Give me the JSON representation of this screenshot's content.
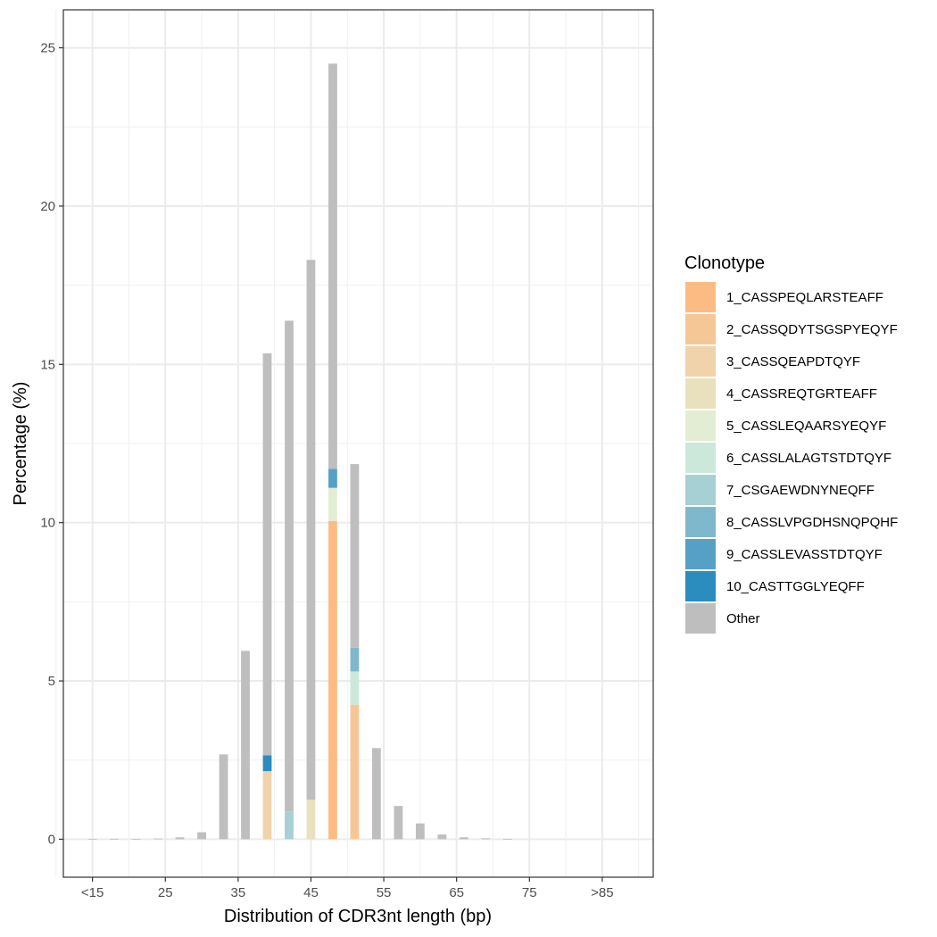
{
  "chart_data": {
    "type": "bar",
    "stacked": true,
    "xlabel": "Distribution of CDR3nt length (bp)",
    "ylabel": "Percentage (%)",
    "x_ticks": [
      {
        "label": "<15",
        "x": 15
      },
      {
        "label": "25",
        "x": 25
      },
      {
        "label": "35",
        "x": 35
      },
      {
        "label": "45",
        "x": 45
      },
      {
        "label": "55",
        "x": 55
      },
      {
        "label": "65",
        "x": 65
      },
      {
        "label": "75",
        "x": 75
      },
      {
        "label": ">85",
        "x": 85
      }
    ],
    "xlim": [
      11,
      92
    ],
    "ylim": [
      -1.2,
      26.2
    ],
    "y_ticks": [
      0,
      5,
      10,
      15,
      20,
      25
    ],
    "grid": true,
    "legend": {
      "title": "Clonotype",
      "placement": "right",
      "entries": [
        {
          "name": "1_CASSPEQLARSTEAFF",
          "color": "#FDBB84"
        },
        {
          "name": "2_CASSQDYTSGSPYEQYF",
          "color": "#F6C796"
        },
        {
          "name": "3_CASSQEAPDTQYF",
          "color": "#F0D3AA"
        },
        {
          "name": "4_CASSREQTGRTEAFF",
          "color": "#E9E1BE"
        },
        {
          "name": "5_CASSLEQAARSYEQYF",
          "color": "#E3EDD3"
        },
        {
          "name": "6_CASSLALAGTSTDTQYF",
          "color": "#CCE8DA"
        },
        {
          "name": "7_CSGAEWDNYNEQFF",
          "color": "#A6D0D3"
        },
        {
          "name": "8_CASSLVPGDHSNQPQHF",
          "color": "#7FB8CC"
        },
        {
          "name": "9_CASSLEVASSTDTQYF",
          "color": "#56A0C6"
        },
        {
          "name": "10_CASTTGGLYEQFF",
          "color": "#2B8CBE"
        },
        {
          "name": "Other",
          "color": "#BEBEBE"
        }
      ]
    },
    "bars": [
      {
        "x": 15,
        "segments": [
          {
            "name": "Other",
            "value": 0.01
          }
        ]
      },
      {
        "x": 18,
        "segments": [
          {
            "name": "Other",
            "value": 0.01
          }
        ]
      },
      {
        "x": 21,
        "segments": [
          {
            "name": "Other",
            "value": 0.01
          }
        ]
      },
      {
        "x": 24,
        "segments": [
          {
            "name": "Other",
            "value": 0.02
          }
        ]
      },
      {
        "x": 27,
        "segments": [
          {
            "name": "Other",
            "value": 0.06
          }
        ]
      },
      {
        "x": 30,
        "segments": [
          {
            "name": "Other",
            "value": 0.22
          }
        ]
      },
      {
        "x": 33,
        "segments": [
          {
            "name": "Other",
            "value": 2.68
          }
        ]
      },
      {
        "x": 36,
        "segments": [
          {
            "name": "Other",
            "value": 5.95
          }
        ]
      },
      {
        "x": 39,
        "segments": [
          {
            "name": "3_CASSQEAPDTQYF",
            "value": 2.15
          },
          {
            "name": "10_CASTTGGLYEQFF",
            "value": 0.5
          },
          {
            "name": "Other",
            "value": 12.7
          }
        ]
      },
      {
        "x": 42,
        "segments": [
          {
            "name": "7_CSGAEWDNYNEQFF",
            "value": 0.88
          },
          {
            "name": "Other",
            "value": 15.5
          }
        ]
      },
      {
        "x": 45,
        "segments": [
          {
            "name": "4_CASSREQTGRTEAFF",
            "value": 1.25
          },
          {
            "name": "Other",
            "value": 17.05
          }
        ]
      },
      {
        "x": 48,
        "segments": [
          {
            "name": "1_CASSPEQLARSTEAFF",
            "value": 10.05
          },
          {
            "name": "5_CASSLEQAARSYEQYF",
            "value": 1.05
          },
          {
            "name": "9_CASSLEVASSTDTQYF",
            "value": 0.6
          },
          {
            "name": "Other",
            "value": 12.8
          }
        ]
      },
      {
        "x": 51,
        "segments": [
          {
            "name": "2_CASSQDYTSGSPYEQYF",
            "value": 4.25
          },
          {
            "name": "6_CASSLALAGTSTDTQYF",
            "value": 1.05
          },
          {
            "name": "8_CASSLVPGDHSNQPQHF",
            "value": 0.75
          },
          {
            "name": "Other",
            "value": 5.8
          }
        ]
      },
      {
        "x": 54,
        "segments": [
          {
            "name": "Other",
            "value": 2.88
          }
        ]
      },
      {
        "x": 57,
        "segments": [
          {
            "name": "Other",
            "value": 1.05
          }
        ]
      },
      {
        "x": 60,
        "segments": [
          {
            "name": "Other",
            "value": 0.5
          }
        ]
      },
      {
        "x": 63,
        "segments": [
          {
            "name": "Other",
            "value": 0.15
          }
        ]
      },
      {
        "x": 66,
        "segments": [
          {
            "name": "Other",
            "value": 0.06
          }
        ]
      },
      {
        "x": 69,
        "segments": [
          {
            "name": "Other",
            "value": 0.03
          }
        ]
      },
      {
        "x": 72,
        "segments": [
          {
            "name": "Other",
            "value": 0.01
          }
        ]
      }
    ]
  }
}
